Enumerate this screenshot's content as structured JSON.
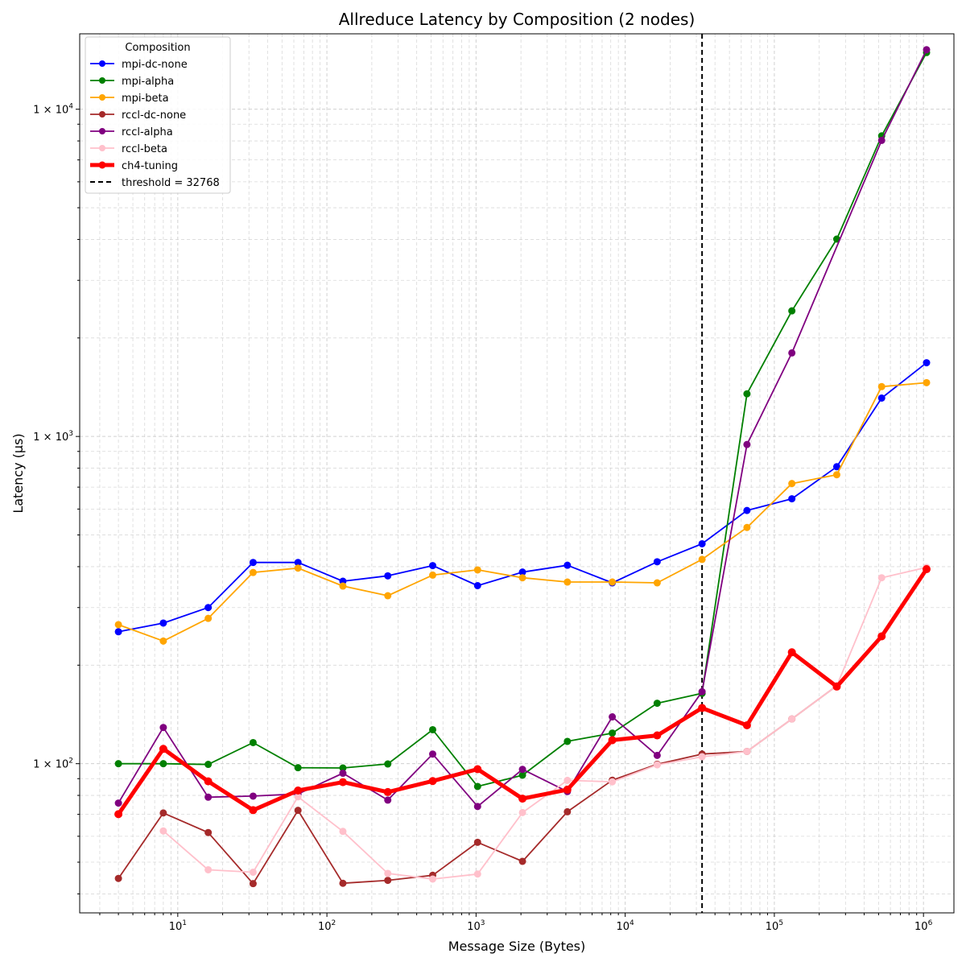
{
  "chart_data": {
    "type": "line",
    "title": "Allreduce Latency by Composition (2 nodes)",
    "xlabel": "Message Size (Bytes)",
    "ylabel": "Latency (µs)",
    "xscale": "log",
    "yscale": "log",
    "xlim": [
      2.2,
      1600000
    ],
    "ylim": [
      35,
      17000
    ],
    "grid": true,
    "legend_title": "Composition",
    "legend_position": "top-left",
    "x_tick_labels": [
      {
        "value": 10,
        "base": "10",
        "exp": "1"
      },
      {
        "value": 100,
        "base": "10",
        "exp": "2"
      },
      {
        "value": 1000,
        "base": "10",
        "exp": "3"
      },
      {
        "value": 10000,
        "base": "10",
        "exp": "4"
      },
      {
        "value": 100000,
        "base": "10",
        "exp": "5"
      },
      {
        "value": 1000000,
        "base": "10",
        "exp": "6"
      }
    ],
    "y_tick_labels": [
      {
        "value": 100,
        "base": "1 × 10",
        "exp": "2"
      },
      {
        "value": 1000,
        "base": "1 × 10",
        "exp": "3"
      },
      {
        "value": 10000,
        "base": "1 × 10",
        "exp": "4"
      }
    ],
    "threshold": {
      "value": 32768,
      "label": "threshold = 32768",
      "color": "#000000"
    },
    "series": [
      {
        "name": "mpi-dc-none",
        "color": "#0000ff",
        "bold": false,
        "x": [
          4,
          8,
          16,
          32,
          64,
          128,
          256,
          512,
          1024,
          2048,
          4096,
          8192,
          16384,
          32768,
          65536,
          131072,
          262144,
          524288,
          1048576
        ],
        "values": [
          253,
          269,
          300,
          412,
          412,
          361,
          375,
          403,
          350,
          385,
          404,
          357,
          414,
          470,
          594,
          645,
          808,
          1310,
          1680
        ]
      },
      {
        "name": "mpi-alpha",
        "color": "#008000",
        "bold": false,
        "x": [
          4,
          8,
          16,
          32,
          64,
          128,
          256,
          512,
          1024,
          2048,
          4096,
          8192,
          16384,
          32768,
          65536,
          131072,
          262144,
          524288,
          1048576
        ],
        "values": [
          100,
          100,
          99.5,
          116,
          97.2,
          97,
          99.8,
          127,
          85.2,
          92.2,
          117,
          124,
          153,
          164,
          1350,
          2420,
          4010,
          8290,
          14900
        ]
      },
      {
        "name": "mpi-beta",
        "color": "#ffa500",
        "bold": false,
        "x": [
          4,
          8,
          16,
          32,
          64,
          128,
          256,
          512,
          1024,
          2048,
          4096,
          8192,
          16384,
          32768,
          65536,
          131072,
          262144,
          524288,
          1048576
        ],
        "values": [
          266,
          237,
          278,
          384,
          396,
          349,
          326,
          377,
          391,
          370,
          359,
          359,
          357,
          421,
          527,
          718,
          764,
          1420,
          1460
        ]
      },
      {
        "name": "rccl-dc-none",
        "color": "#a52a2a",
        "bold": false,
        "x": [
          4,
          8,
          16,
          32,
          64,
          128,
          256,
          512,
          1024,
          2048,
          4096,
          8192,
          16384,
          32768,
          65536,
          131072,
          262144,
          524288,
          1048576
        ],
        "values": [
          44.6,
          70.7,
          61.6,
          43,
          72,
          43.1,
          44,
          45.6,
          57.5,
          50.3,
          71.3,
          89,
          99.6,
          107,
          109,
          137,
          173,
          245,
          394
        ]
      },
      {
        "name": "rccl-alpha",
        "color": "#800080",
        "bold": false,
        "x": [
          4,
          8,
          16,
          32,
          64,
          128,
          256,
          512,
          1024,
          2048,
          4096,
          8192,
          16384,
          32768,
          65536,
          131072,
          524288,
          1048576
        ],
        "values": [
          75.8,
          129,
          79,
          79.6,
          80.8,
          93.5,
          77.4,
          107,
          74,
          96.1,
          82.2,
          139,
          106,
          166,
          945,
          1800,
          8030,
          15200
        ]
      },
      {
        "name": "rccl-beta",
        "color": "#ffc0cb",
        "bold": false,
        "x": [
          8,
          16,
          32,
          64,
          128,
          256,
          512,
          1024,
          2048,
          4096,
          8192,
          16384,
          32768,
          65536,
          131072,
          262144,
          524288,
          1048576
        ],
        "values": [
          62.3,
          47.4,
          46.6,
          79.2,
          62.1,
          46.2,
          44.4,
          46,
          70.9,
          88.9,
          88,
          99.2,
          105,
          109,
          137,
          173,
          370,
          398
        ]
      },
      {
        "name": "ch4-tuning",
        "color": "#ff0000",
        "bold": true,
        "x": [
          4,
          8,
          16,
          32,
          64,
          128,
          256,
          512,
          1024,
          2048,
          4096,
          8192,
          16384,
          32768,
          65536,
          131072,
          262144,
          524288,
          1048576
        ],
        "values": [
          70.1,
          111,
          88.3,
          72.1,
          82.8,
          87.8,
          81.9,
          88.5,
          96.2,
          78.2,
          83.3,
          118,
          122,
          148,
          131,
          219,
          172,
          245,
          393
        ]
      }
    ]
  }
}
